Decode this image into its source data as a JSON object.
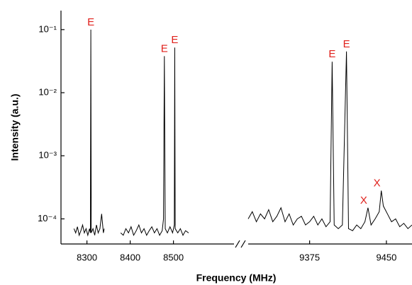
{
  "chart_data": {
    "type": "line",
    "log_y": true,
    "x_label": "Frequency (MHz)",
    "y_label": "Intensity (a.u.)",
    "x_segments": [
      {
        "xlim": [
          8240,
          8640
        ],
        "xticks": [
          8300,
          8400,
          8500
        ]
      },
      {
        "xlim": [
          9315,
          9475
        ],
        "xticks": [
          9375,
          9450
        ]
      }
    ],
    "ylim": [
      4e-05,
      0.2
    ],
    "yticks": [
      {
        "value": 0.0001,
        "label": "10⁻⁴"
      },
      {
        "value": 0.001,
        "label": "10⁻³"
      },
      {
        "value": 0.01,
        "label": "10⁻²"
      },
      {
        "value": 0.1,
        "label": "10⁻¹"
      }
    ],
    "series": [
      {
        "color": "#000000",
        "x": [
          8270,
          8274,
          8278,
          8282,
          8286,
          8290,
          8294,
          8298,
          8302,
          8306,
          8308,
          8309,
          8310,
          8314,
          8318,
          8322,
          8326,
          8330,
          8334,
          8338,
          8340,
          8360,
          8378,
          8384,
          8390,
          8396,
          8402,
          8408,
          8414,
          8420,
          8426,
          8432,
          8438,
          8444,
          8450,
          8456,
          8462,
          8468,
          8474,
          8477,
          8479,
          8481,
          8486,
          8492,
          8498,
          8502,
          8503,
          8504,
          8510,
          8516,
          8522,
          8528,
          8535,
          8560,
          9315,
          9319,
          9323,
          9327,
          9331,
          9335,
          9339,
          9343,
          9347,
          9351,
          9355,
          9359,
          9363,
          9367,
          9371,
          9375,
          9379,
          9383,
          9387,
          9391,
          9395,
          9397,
          9399,
          9403,
          9407,
          9411,
          9413,
          9417,
          9421,
          9425,
          9429,
          9432,
          9435,
          9439,
          9443,
          9445,
          9447,
          9451,
          9455,
          9459,
          9463,
          9467,
          9471,
          9475
        ],
        "values": [
          7e-05,
          6e-05,
          7.5e-05,
          5.5e-05,
          6.5e-05,
          8e-05,
          6e-05,
          7e-05,
          5.5e-05,
          7e-05,
          6e-05,
          0.1,
          6e-05,
          7e-05,
          5.5e-05,
          8e-05,
          6e-05,
          7e-05,
          0.00012,
          6e-05,
          7e-05,
          null,
          6e-05,
          5.5e-05,
          7e-05,
          6e-05,
          7.5e-05,
          5.5e-05,
          6.5e-05,
          8e-05,
          6e-05,
          7e-05,
          5.5e-05,
          6.5e-05,
          7.5e-05,
          6e-05,
          7e-05,
          5.5e-05,
          6.5e-05,
          0.0001,
          0.038,
          7e-05,
          6e-05,
          7.5e-05,
          6e-05,
          8e-05,
          0.052,
          7e-05,
          6e-05,
          7e-05,
          5.5e-05,
          6.5e-05,
          6e-05,
          null,
          0.0001,
          0.00013,
          9e-05,
          0.00012,
          0.0001,
          0.00014,
          9e-05,
          0.00011,
          0.00015,
          9e-05,
          0.00012,
          8e-05,
          0.0001,
          0.00011,
          8e-05,
          9e-05,
          0.00011,
          8e-05,
          0.0001,
          7.5e-05,
          9e-05,
          0.031,
          8e-05,
          7e-05,
          8e-05,
          0.045,
          7e-05,
          6.5e-05,
          8e-05,
          7e-05,
          9e-05,
          0.00015,
          8e-05,
          0.0001,
          0.00013,
          0.00028,
          0.00016,
          0.00012,
          9e-05,
          0.0001,
          7.5e-05,
          8.5e-05,
          7e-05,
          8e-05
        ]
      }
    ],
    "annotation_color": "#e0201b",
    "annotations": [
      {
        "text": "E",
        "x": 8309,
        "y": 0.1
      },
      {
        "text": "E",
        "x": 8479,
        "y": 0.038
      },
      {
        "text": "E",
        "x": 8503,
        "y": 0.052
      },
      {
        "text": "E",
        "x": 9397,
        "y": 0.031
      },
      {
        "text": "E",
        "x": 9411,
        "y": 0.045
      },
      {
        "text": "X",
        "x": 9432,
        "y": 0.00015
      },
      {
        "text": "X",
        "x": 9445,
        "y": 0.00028
      }
    ]
  }
}
